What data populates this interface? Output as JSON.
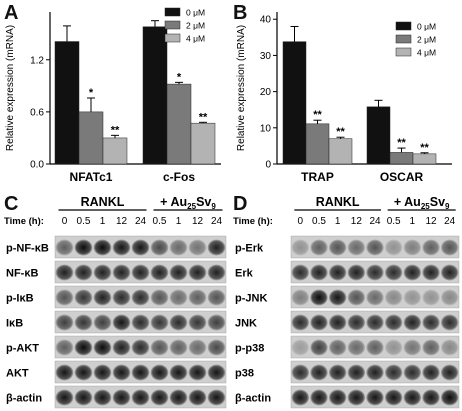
{
  "panels": {
    "A": {
      "letter": "A"
    },
    "B": {
      "letter": "B"
    },
    "C": {
      "letter": "C",
      "time_label": "Time (h):",
      "group1_label": "RANKL",
      "group2_label": "+ Au",
      "group2_sub1": "25",
      "group2_mid": "Sv",
      "group2_sub2": "9",
      "time_points": [
        "0",
        "0.5",
        "1",
        "12",
        "24",
        "0.5",
        "1",
        "12",
        "24"
      ],
      "rows": [
        {
          "label": "p-NF-κB"
        },
        {
          "label": "NF-κB"
        },
        {
          "label": "p-IκB"
        },
        {
          "label": "IκB"
        },
        {
          "label": "p-AKT"
        },
        {
          "label": "AKT"
        },
        {
          "label": "β-actin"
        }
      ]
    },
    "D": {
      "letter": "D",
      "time_label": "Time (h):",
      "group1_label": "RANKL",
      "group2_label": "+ Au",
      "group2_sub1": "25",
      "group2_mid": "Sv",
      "group2_sub2": "9",
      "time_points": [
        "0",
        "0.5",
        "1",
        "12",
        "24",
        "0.5",
        "1",
        "12",
        "24"
      ],
      "rows": [
        {
          "label": "p-Erk"
        },
        {
          "label": "Erk"
        },
        {
          "label": "p-JNK"
        },
        {
          "label": "JNK"
        },
        {
          "label": "p-p38"
        },
        {
          "label": "p38"
        },
        {
          "label": "β-actin"
        }
      ]
    }
  },
  "legend": {
    "entries": [
      "0 μM",
      "2 μM",
      "4 μM"
    ],
    "colors": [
      "#111111",
      "#7a7a7a",
      "#b3b3b3"
    ]
  },
  "chart_data": [
    {
      "type": "bar",
      "panel": "A",
      "ylabel": "Relative expression (mRNA)",
      "categories": [
        "NFATc1",
        "c-Fos"
      ],
      "ylim": [
        0,
        1.75
      ],
      "yticks": [
        "0.0",
        "0.6",
        "1.2"
      ],
      "series": [
        {
          "name": "0 μM",
          "values": [
            1.41,
            1.58
          ],
          "errors": [
            0.18,
            0.07
          ]
        },
        {
          "name": "2 μM",
          "values": [
            0.6,
            0.92
          ],
          "errors": [
            0.16,
            0.02
          ]
        },
        {
          "name": "4 μM",
          "values": [
            0.3,
            0.47
          ],
          "errors": [
            0.03,
            0.01
          ]
        }
      ],
      "annotations": [
        {
          "category": "NFATc1",
          "series": "2 μM",
          "text": "*"
        },
        {
          "category": "NFATc1",
          "series": "4 μM",
          "text": "**"
        },
        {
          "category": "c-Fos",
          "series": "2 μM",
          "text": "*"
        },
        {
          "category": "c-Fos",
          "series": "4 μM",
          "text": "**"
        }
      ]
    },
    {
      "type": "bar",
      "panel": "B",
      "ylabel": "Relative expression (mRNA)",
      "categories": [
        "TRAP",
        "OSCAR"
      ],
      "ylim": [
        0,
        42
      ],
      "yticks": [
        "0",
        "10",
        "20",
        "30",
        "40"
      ],
      "series": [
        {
          "name": "0 μM",
          "values": [
            33.8,
            15.8
          ],
          "errors": [
            4.2,
            1.8
          ]
        },
        {
          "name": "2 μM",
          "values": [
            11.1,
            3.2
          ],
          "errors": [
            1.0,
            1.2
          ]
        },
        {
          "name": "4 μM",
          "values": [
            7.0,
            2.8
          ],
          "errors": [
            0.4,
            0.3
          ]
        }
      ],
      "annotations": [
        {
          "category": "TRAP",
          "series": "2 μM",
          "text": "**"
        },
        {
          "category": "TRAP",
          "series": "4 μM",
          "text": "**"
        },
        {
          "category": "OSCAR",
          "series": "2 μM",
          "text": "**"
        },
        {
          "category": "OSCAR",
          "series": "4 μM",
          "text": "**"
        }
      ]
    }
  ]
}
